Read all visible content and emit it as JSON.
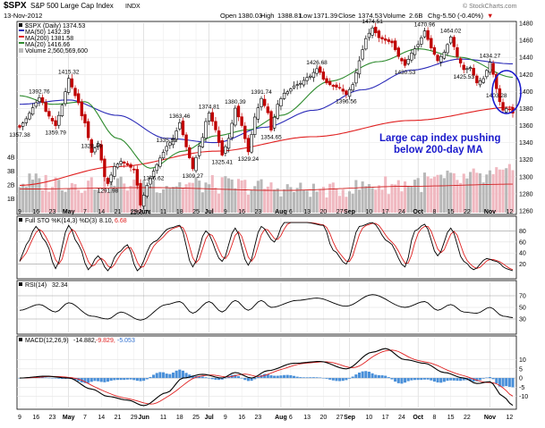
{
  "header": {
    "symbol": "$SPX",
    "name": "S&P 500 Large Cap Index",
    "exchange": "INDX",
    "date": "13-Nov-2012",
    "open_label": "Open",
    "open": "1380.03",
    "high_label": "High",
    "high": "1388.81",
    "low_label": "Low",
    "low": "1371.39",
    "close_label": "Close",
    "close": "1374.53",
    "volume_label": "Volume",
    "volume": "2.6B",
    "chg_label": "Chg",
    "chg": "-5.50 (-0.40%)",
    "chg_arrow": "▼",
    "watermark": "© StockCharts.com"
  },
  "price_legend": [
    {
      "text": "$SPX (Daily) 1374.53",
      "color": "#000000"
    },
    {
      "text": "MA(50) 1432.39",
      "color": "#2b2bb8"
    },
    {
      "text": "MA(200) 1381.58",
      "color": "#e02020"
    },
    {
      "text": "MA(20) 1416.66",
      "color": "#2e8b2e"
    },
    {
      "text": "Volume 2,560,569,600",
      "color": "#888888"
    }
  ],
  "annotation": {
    "line1": "Large cap index pushing",
    "line2": "below 200-day MA",
    "color": "#1a1acc"
  },
  "sto": {
    "label": "Full STO %K(14,3) %D(3)",
    "k": "8.10,",
    "d": "6.68",
    "levels": [
      "80",
      "60",
      "40",
      "20"
    ]
  },
  "rsi": {
    "label": "RSI(14)",
    "value": "32.34",
    "levels": [
      "70",
      "50",
      "30"
    ]
  },
  "macd": {
    "label": "MACD(12,26,9)",
    "macd": "-14.882,",
    "signal": "-9.829,",
    "hist": "-5.053",
    "levels": [
      "10",
      "5",
      "0",
      "-5",
      "-10"
    ]
  },
  "x_labels": [
    {
      "text": "9",
      "i": 0
    },
    {
      "text": "16",
      "i": 5
    },
    {
      "text": "23",
      "i": 10
    },
    {
      "text": "May",
      "i": 15,
      "bold": true
    },
    {
      "text": "7",
      "i": 20
    },
    {
      "text": "14",
      "i": 25
    },
    {
      "text": "21",
      "i": 30
    },
    {
      "text": "29",
      "i": 35
    },
    {
      "text": "Jun",
      "i": 38,
      "bold": true
    },
    {
      "text": "11",
      "i": 44
    },
    {
      "text": "18",
      "i": 49
    },
    {
      "text": "25",
      "i": 54
    },
    {
      "text": "Jul",
      "i": 58,
      "bold": true
    },
    {
      "text": "9",
      "i": 63
    },
    {
      "text": "16",
      "i": 68
    },
    {
      "text": "23",
      "i": 73
    },
    {
      "text": "Aug",
      "i": 80,
      "bold": true
    },
    {
      "text": "6",
      "i": 83
    },
    {
      "text": "13",
      "i": 88
    },
    {
      "text": "20",
      "i": 93
    },
    {
      "text": "27",
      "i": 98
    },
    {
      "text": "Sep",
      "i": 101,
      "bold": true
    },
    {
      "text": "10",
      "i": 107
    },
    {
      "text": "17",
      "i": 112
    },
    {
      "text": "24",
      "i": 117
    },
    {
      "text": "Oct",
      "i": 122,
      "bold": true
    },
    {
      "text": "8",
      "i": 127
    },
    {
      "text": "15",
      "i": 132
    },
    {
      "text": "22",
      "i": 137
    },
    {
      "text": "Nov",
      "i": 144,
      "bold": true
    },
    {
      "text": "12",
      "i": 150
    }
  ],
  "chart_data": {
    "type": "candlestick",
    "title": "$SPX S&P 500 Large Cap Index INDX (Daily)",
    "date_range": "9-Apr-2012 to 13-Nov-2012",
    "price_axis": {
      "min": 1260,
      "max": 1480,
      "ticks": [
        1480,
        1460,
        1440,
        1420,
        1400,
        1380,
        1360,
        1340,
        1320,
        1300,
        1280,
        1260
      ]
    },
    "volume_axis": {
      "ticks": [
        "4B",
        "3B",
        "2B",
        "1B"
      ],
      "max": 4.5
    },
    "price_anchors": [
      {
        "i": 0,
        "v": 1358
      },
      {
        "i": 2,
        "v": 1368
      },
      {
        "i": 4,
        "v": 1381
      },
      {
        "i": 6,
        "v": 1392.76
      },
      {
        "i": 9,
        "v": 1371
      },
      {
        "i": 11,
        "v": 1359.79
      },
      {
        "i": 13,
        "v": 1384
      },
      {
        "i": 15,
        "v": 1415.32
      },
      {
        "i": 17,
        "v": 1395
      },
      {
        "i": 20,
        "v": 1363
      },
      {
        "i": 22,
        "v": 1328.49
      },
      {
        "i": 24,
        "v": 1339
      },
      {
        "i": 26,
        "v": 1300
      },
      {
        "i": 27,
        "v": 1291.98
      },
      {
        "i": 29,
        "v": 1312
      },
      {
        "i": 31,
        "v": 1318
      },
      {
        "i": 33,
        "v": 1314
      },
      {
        "i": 35,
        "v": 1308
      },
      {
        "i": 36,
        "v": 1290
      },
      {
        "i": 37,
        "v": 1266.74
      },
      {
        "i": 39,
        "v": 1290
      },
      {
        "i": 41,
        "v": 1306.62
      },
      {
        "i": 43,
        "v": 1322
      },
      {
        "i": 45,
        "v": 1335.52
      },
      {
        "i": 47,
        "v": 1344
      },
      {
        "i": 49,
        "v": 1363.46
      },
      {
        "i": 51,
        "v": 1335
      },
      {
        "i": 53,
        "v": 1309.27
      },
      {
        "i": 55,
        "v": 1336
      },
      {
        "i": 58,
        "v": 1374.81
      },
      {
        "i": 60,
        "v": 1355
      },
      {
        "i": 62,
        "v": 1325.41
      },
      {
        "i": 64,
        "v": 1345
      },
      {
        "i": 66,
        "v": 1380.39
      },
      {
        "i": 68,
        "v": 1360
      },
      {
        "i": 70,
        "v": 1329.24
      },
      {
        "i": 72,
        "v": 1370
      },
      {
        "i": 74,
        "v": 1391.74
      },
      {
        "i": 76,
        "v": 1375
      },
      {
        "i": 77,
        "v": 1354.65
      },
      {
        "i": 79,
        "v": 1385
      },
      {
        "i": 81,
        "v": 1398
      },
      {
        "i": 85,
        "v": 1408
      },
      {
        "i": 89,
        "v": 1418
      },
      {
        "i": 91,
        "v": 1426.68
      },
      {
        "i": 94,
        "v": 1410
      },
      {
        "i": 96,
        "v": 1406
      },
      {
        "i": 98,
        "v": 1404
      },
      {
        "i": 100,
        "v": 1396.56
      },
      {
        "i": 102,
        "v": 1408
      },
      {
        "i": 104,
        "v": 1436
      },
      {
        "i": 106,
        "v": 1462
      },
      {
        "i": 108,
        "v": 1474.51
      },
      {
        "i": 110,
        "v": 1463
      },
      {
        "i": 112,
        "v": 1460
      },
      {
        "i": 114,
        "v": 1457
      },
      {
        "i": 116,
        "v": 1441
      },
      {
        "i": 118,
        "v": 1430.53
      },
      {
        "i": 120,
        "v": 1445
      },
      {
        "i": 122,
        "v": 1455
      },
      {
        "i": 124,
        "v": 1470.96
      },
      {
        "i": 126,
        "v": 1451
      },
      {
        "i": 128,
        "v": 1436
      },
      {
        "i": 130,
        "v": 1446
      },
      {
        "i": 132,
        "v": 1464.02
      },
      {
        "i": 134,
        "v": 1441
      },
      {
        "i": 136,
        "v": 1425.53
      },
      {
        "i": 138,
        "v": 1428
      },
      {
        "i": 140,
        "v": 1410
      },
      {
        "i": 142,
        "v": 1415
      },
      {
        "i": 144,
        "v": 1434.27
      },
      {
        "i": 145,
        "v": 1420
      },
      {
        "i": 146,
        "v": 1403.28
      },
      {
        "i": 147,
        "v": 1388
      },
      {
        "i": 148,
        "v": 1378
      },
      {
        "i": 149,
        "v": 1380
      },
      {
        "i": 150,
        "v": 1379
      },
      {
        "i": 151,
        "v": 1374.53
      }
    ],
    "price_labels": [
      {
        "i": 0,
        "v": 1357.38,
        "pos": "below"
      },
      {
        "i": 6,
        "v": 1392.76,
        "pos": "above"
      },
      {
        "i": 11,
        "v": 1359.79,
        "pos": "below"
      },
      {
        "i": 15,
        "v": 1415.32,
        "pos": "above"
      },
      {
        "i": 22,
        "v": 1328.49,
        "pos": "above"
      },
      {
        "i": 27,
        "v": 1291.98,
        "pos": "below"
      },
      {
        "i": 37,
        "v": 1266.74,
        "pos": "below"
      },
      {
        "i": 41,
        "v": 1306.62,
        "pos": "below"
      },
      {
        "i": 45,
        "v": 1335.52,
        "pos": "above"
      },
      {
        "i": 49,
        "v": 1363.46,
        "pos": "above"
      },
      {
        "i": 53,
        "v": 1309.27,
        "pos": "below"
      },
      {
        "i": 58,
        "v": 1374.81,
        "pos": "above"
      },
      {
        "i": 62,
        "v": 1325.41,
        "pos": "below"
      },
      {
        "i": 66,
        "v": 1380.39,
        "pos": "above"
      },
      {
        "i": 70,
        "v": 1329.24,
        "pos": "below"
      },
      {
        "i": 74,
        "v": 1391.74,
        "pos": "above"
      },
      {
        "i": 77,
        "v": 1354.65,
        "pos": "below"
      },
      {
        "i": 91,
        "v": 1426.68,
        "pos": "above"
      },
      {
        "i": 100,
        "v": 1396.56,
        "pos": "below"
      },
      {
        "i": 108,
        "v": 1474.51,
        "pos": "above"
      },
      {
        "i": 118,
        "v": 1430.53,
        "pos": "below"
      },
      {
        "i": 124,
        "v": 1470.96,
        "pos": "above"
      },
      {
        "i": 132,
        "v": 1464.02,
        "pos": "above"
      },
      {
        "i": 136,
        "v": 1425.53,
        "pos": "below"
      },
      {
        "i": 144,
        "v": 1434.27,
        "pos": "above"
      },
      {
        "i": 146,
        "v": 1403.28,
        "pos": "below"
      }
    ],
    "ma50_anchors": [
      {
        "i": 0,
        "v": 1385
      },
      {
        "i": 15,
        "v": 1390
      },
      {
        "i": 30,
        "v": 1372
      },
      {
        "i": 45,
        "v": 1345
      },
      {
        "i": 60,
        "v": 1340
      },
      {
        "i": 75,
        "v": 1358
      },
      {
        "i": 90,
        "v": 1378
      },
      {
        "i": 105,
        "v": 1402
      },
      {
        "i": 120,
        "v": 1425
      },
      {
        "i": 135,
        "v": 1438
      },
      {
        "i": 151,
        "v": 1432.39
      }
    ],
    "ma200_anchors": [
      {
        "i": 0,
        "v": 1290
      },
      {
        "i": 30,
        "v": 1312
      },
      {
        "i": 60,
        "v": 1330
      },
      {
        "i": 90,
        "v": 1347
      },
      {
        "i": 120,
        "v": 1366
      },
      {
        "i": 151,
        "v": 1381.58
      }
    ],
    "ma20_anchors": [
      {
        "i": 0,
        "v": 1395
      },
      {
        "i": 10,
        "v": 1385
      },
      {
        "i": 20,
        "v": 1388
      },
      {
        "i": 30,
        "v": 1345
      },
      {
        "i": 40,
        "v": 1310
      },
      {
        "i": 50,
        "v": 1330
      },
      {
        "i": 60,
        "v": 1348
      },
      {
        "i": 70,
        "v": 1355
      },
      {
        "i": 80,
        "v": 1372
      },
      {
        "i": 95,
        "v": 1412
      },
      {
        "i": 110,
        "v": 1435
      },
      {
        "i": 122,
        "v": 1450
      },
      {
        "i": 135,
        "v": 1440
      },
      {
        "i": 151,
        "v": 1416.66
      }
    ],
    "volume_base_anchors": [
      {
        "i": 0,
        "v": 2.2
      },
      {
        "i": 30,
        "v": 2.1
      },
      {
        "i": 60,
        "v": 2.0
      },
      {
        "i": 95,
        "v": 1.6
      },
      {
        "i": 110,
        "v": 2.0
      },
      {
        "i": 130,
        "v": 2.3
      },
      {
        "i": 151,
        "v": 2.6
      }
    ],
    "volume_ma_anchors": [
      {
        "i": 0,
        "v": 1.7
      },
      {
        "i": 40,
        "v": 1.8
      },
      {
        "i": 80,
        "v": 1.6
      },
      {
        "i": 120,
        "v": 1.9
      },
      {
        "i": 151,
        "v": 2.05
      }
    ],
    "sto_k_anchors": [
      {
        "i": 0,
        "v": 25
      },
      {
        "i": 2,
        "v": 55
      },
      {
        "i": 5,
        "v": 88
      },
      {
        "i": 8,
        "v": 60
      },
      {
        "i": 11,
        "v": 12
      },
      {
        "i": 15,
        "v": 90
      },
      {
        "i": 18,
        "v": 55
      },
      {
        "i": 21,
        "v": 10
      },
      {
        "i": 24,
        "v": 35
      },
      {
        "i": 27,
        "v": 8
      },
      {
        "i": 30,
        "v": 40
      },
      {
        "i": 33,
        "v": 55
      },
      {
        "i": 36,
        "v": 8
      },
      {
        "i": 41,
        "v": 60
      },
      {
        "i": 46,
        "v": 85
      },
      {
        "i": 49,
        "v": 90
      },
      {
        "i": 53,
        "v": 15
      },
      {
        "i": 57,
        "v": 80
      },
      {
        "i": 62,
        "v": 25
      },
      {
        "i": 66,
        "v": 85
      },
      {
        "i": 70,
        "v": 18
      },
      {
        "i": 74,
        "v": 88
      },
      {
        "i": 78,
        "v": 60
      },
      {
        "i": 81,
        "v": 95
      },
      {
        "i": 88,
        "v": 95
      },
      {
        "i": 93,
        "v": 90
      },
      {
        "i": 96,
        "v": 45
      },
      {
        "i": 100,
        "v": 20
      },
      {
        "i": 104,
        "v": 88
      },
      {
        "i": 108,
        "v": 95
      },
      {
        "i": 113,
        "v": 60
      },
      {
        "i": 118,
        "v": 15
      },
      {
        "i": 121,
        "v": 80
      },
      {
        "i": 124,
        "v": 92
      },
      {
        "i": 128,
        "v": 35
      },
      {
        "i": 132,
        "v": 85
      },
      {
        "i": 136,
        "v": 25
      },
      {
        "i": 139,
        "v": 10
      },
      {
        "i": 143,
        "v": 30
      },
      {
        "i": 146,
        "v": 25
      },
      {
        "i": 149,
        "v": 12
      },
      {
        "i": 151,
        "v": 8.1
      }
    ],
    "sto_d_lag": 2,
    "rsi_anchors": [
      {
        "i": 0,
        "v": 45
      },
      {
        "i": 6,
        "v": 55
      },
      {
        "i": 11,
        "v": 42
      },
      {
        "i": 15,
        "v": 58
      },
      {
        "i": 22,
        "v": 35
      },
      {
        "i": 27,
        "v": 30
      },
      {
        "i": 31,
        "v": 42
      },
      {
        "i": 37,
        "v": 28
      },
      {
        "i": 45,
        "v": 55
      },
      {
        "i": 49,
        "v": 60
      },
      {
        "i": 53,
        "v": 40
      },
      {
        "i": 58,
        "v": 60
      },
      {
        "i": 62,
        "v": 42
      },
      {
        "i": 66,
        "v": 62
      },
      {
        "i": 70,
        "v": 45
      },
      {
        "i": 74,
        "v": 62
      },
      {
        "i": 77,
        "v": 50
      },
      {
        "i": 85,
        "v": 62
      },
      {
        "i": 91,
        "v": 66
      },
      {
        "i": 100,
        "v": 52
      },
      {
        "i": 108,
        "v": 72
      },
      {
        "i": 118,
        "v": 50
      },
      {
        "i": 124,
        "v": 60
      },
      {
        "i": 128,
        "v": 45
      },
      {
        "i": 132,
        "v": 55
      },
      {
        "i": 136,
        "v": 42
      },
      {
        "i": 140,
        "v": 40
      },
      {
        "i": 144,
        "v": 50
      },
      {
        "i": 148,
        "v": 35
      },
      {
        "i": 151,
        "v": 32.34
      }
    ],
    "macd_anchors": [
      {
        "i": 0,
        "v": 0
      },
      {
        "i": 8,
        "v": 1
      },
      {
        "i": 15,
        "v": 0
      },
      {
        "i": 22,
        "v": -6
      },
      {
        "i": 27,
        "v": -10
      },
      {
        "i": 33,
        "v": -12
      },
      {
        "i": 38,
        "v": -15
      },
      {
        "i": 45,
        "v": -8
      },
      {
        "i": 50,
        "v": 0
      },
      {
        "i": 56,
        "v": 2
      },
      {
        "i": 62,
        "v": 0
      },
      {
        "i": 66,
        "v": 3
      },
      {
        "i": 71,
        "v": 0
      },
      {
        "i": 76,
        "v": 4
      },
      {
        "i": 84,
        "v": 8
      },
      {
        "i": 92,
        "v": 9
      },
      {
        "i": 100,
        "v": 5
      },
      {
        "i": 108,
        "v": 14
      },
      {
        "i": 112,
        "v": 16
      },
      {
        "i": 118,
        "v": 10
      },
      {
        "i": 124,
        "v": 8
      },
      {
        "i": 130,
        "v": 3
      },
      {
        "i": 136,
        "v": 0
      },
      {
        "i": 140,
        "v": -3
      },
      {
        "i": 144,
        "v": -2
      },
      {
        "i": 148,
        "v": -10
      },
      {
        "i": 151,
        "v": -14.882
      }
    ],
    "signal_lag": 5,
    "signal_last": -9.829,
    "histogram_last": -5.053
  }
}
